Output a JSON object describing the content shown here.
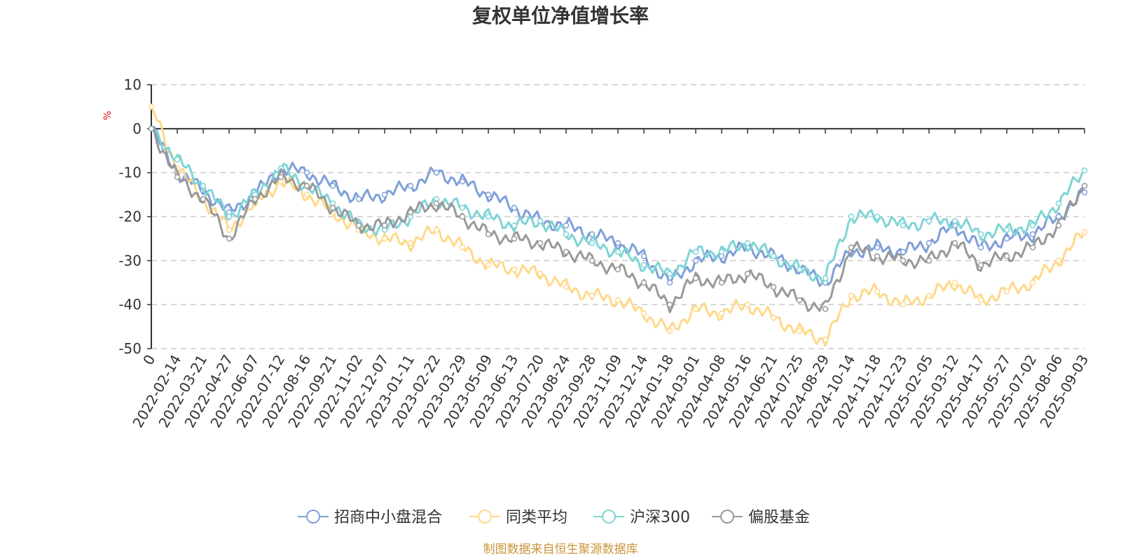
{
  "chart_data": {
    "type": "line",
    "title": "复权单位净值增长率",
    "ylabel": "%",
    "ylim": [
      -50,
      10
    ],
    "yticks": [
      10,
      0,
      -10,
      -20,
      -30,
      -40,
      -50
    ],
    "grid": true,
    "legend_position": "bottom",
    "source": "制图数据来自恒生聚源数据库",
    "x_tick_labels": [
      "0",
      "2022-02-14",
      "2022-03-21",
      "2022-04-27",
      "2022-06-07",
      "2022-07-12",
      "2022-08-16",
      "2022-09-21",
      "2022-11-02",
      "2022-12-07",
      "2023-01-11",
      "2023-02-22",
      "2023-03-29",
      "2023-05-09",
      "2023-06-13",
      "2023-07-20",
      "2023-08-24",
      "2023-09-28",
      "2023-11-09",
      "2023-12-14",
      "2024-01-18",
      "2024-03-01",
      "2024-04-08",
      "2024-05-16",
      "2024-06-21",
      "2024-07-25",
      "2024-08-29",
      "2024-10-14",
      "2024-11-18",
      "2024-12-23",
      "2025-02-05",
      "2025-03-12",
      "2025-04-17",
      "2025-05-27",
      "2025-07-02",
      "2025-08-06",
      "2025-09-03"
    ],
    "x_index": [
      0,
      1,
      2,
      3,
      4,
      5,
      6,
      7,
      8,
      9,
      10,
      11,
      12,
      13,
      14,
      15,
      16,
      17,
      18,
      19,
      20,
      21,
      22,
      23,
      24,
      25,
      26,
      27,
      28,
      29,
      30,
      31,
      32,
      33,
      34,
      35,
      36
    ],
    "series": [
      {
        "name": "招商中小盘混合",
        "color": "#7f9fd8",
        "values": [
          0,
          -10,
          -14,
          -19,
          -15,
          -9,
          -10,
          -13,
          -16,
          -15,
          -13,
          -10,
          -12,
          -15,
          -18,
          -21,
          -22,
          -24,
          -26,
          -29,
          -35,
          -30,
          -29,
          -27,
          -29,
          -32,
          -35,
          -28,
          -27,
          -28,
          -26,
          -22,
          -27,
          -25,
          -24,
          -20,
          -14.5
        ]
      },
      {
        "name": "同类平均",
        "color": "#ffd98a",
        "values": [
          5,
          -9,
          -16,
          -23,
          -17,
          -12,
          -15,
          -19,
          -23,
          -25,
          -26,
          -23,
          -27,
          -31,
          -32,
          -33,
          -36,
          -38,
          -39,
          -42,
          -46,
          -41,
          -42,
          -40,
          -43,
          -46,
          -48,
          -38,
          -37,
          -40,
          -38,
          -35,
          -39,
          -37,
          -35,
          -30,
          -23.5
        ]
      },
      {
        "name": "沪深300",
        "color": "#7fd4d6",
        "values": [
          0,
          -7,
          -13,
          -20,
          -15,
          -9,
          -13,
          -17,
          -22,
          -23,
          -20,
          -16,
          -18,
          -20,
          -22,
          -21,
          -24,
          -26,
          -28,
          -31,
          -33,
          -28,
          -28,
          -26,
          -29,
          -32,
          -34,
          -20,
          -20,
          -22,
          -21,
          -21,
          -24,
          -23,
          -22,
          -17,
          -9.5
        ]
      },
      {
        "name": "偏股基金",
        "color": "#999999",
        "values": [
          0,
          -11,
          -16,
          -25,
          -16,
          -11,
          -13,
          -18,
          -22,
          -22,
          -19,
          -17,
          -20,
          -24,
          -25,
          -26,
          -28,
          -30,
          -32,
          -35,
          -40,
          -34,
          -35,
          -33,
          -36,
          -39,
          -41,
          -27,
          -29,
          -30,
          -30,
          -26,
          -31,
          -29,
          -27,
          -22,
          -13
        ]
      }
    ]
  }
}
